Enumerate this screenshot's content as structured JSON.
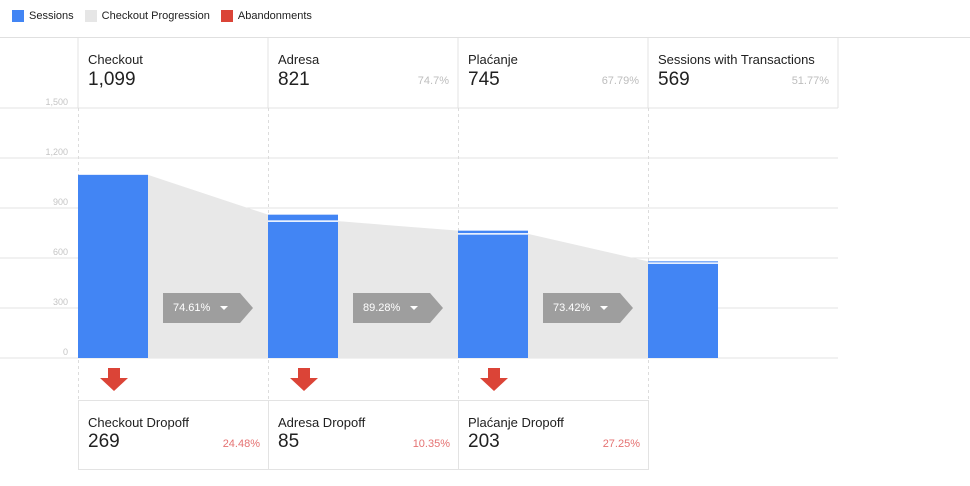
{
  "legend": [
    {
      "label": "Sessions",
      "color": "#4285f4"
    },
    {
      "label": "Checkout Progression",
      "color": "#e6e6e6"
    },
    {
      "label": "Abandonments",
      "color": "#db4437"
    }
  ],
  "stages": [
    {
      "name": "Checkout",
      "value": "1,099",
      "pct": ""
    },
    {
      "name": "Adresa",
      "value": "821",
      "pct": "74.7%"
    },
    {
      "name": "Plaćanje",
      "value": "745",
      "pct": "67.79%"
    },
    {
      "name": "Sessions with Transactions",
      "value": "569",
      "pct": "51.77%"
    }
  ],
  "dropoffs": [
    {
      "name": "Checkout Dropoff",
      "value": "269",
      "pct": "24.48%"
    },
    {
      "name": "Adresa Dropoff",
      "value": "85",
      "pct": "10.35%"
    },
    {
      "name": "Plaćanje Dropoff",
      "value": "203",
      "pct": "27.25%"
    }
  ],
  "progress_labels": [
    "74.61%",
    "89.28%",
    "73.42%"
  ],
  "chart_data": {
    "type": "bar",
    "categories": [
      "Checkout",
      "Adresa",
      "Plaćanje",
      "Sessions with Transactions"
    ],
    "series": [
      {
        "name": "Sessions",
        "values": [
          1099,
          860,
          764,
          580
        ]
      }
    ],
    "backfill_values": [
      0,
      39,
      19,
      11
    ],
    "progression_values": [
      1099,
      821,
      745,
      569
    ],
    "abandonment_values": [
      269,
      85,
      203
    ],
    "ylim": [
      0,
      1500
    ],
    "yticks": [
      "0",
      "300",
      "600",
      "900",
      "1,200",
      "1,500"
    ],
    "grid": true,
    "colors": {
      "sessions": "#4285f4",
      "progression": "#e8e8e8",
      "abandonment": "#db4437",
      "progress_arrow": "#9e9e9e"
    }
  }
}
